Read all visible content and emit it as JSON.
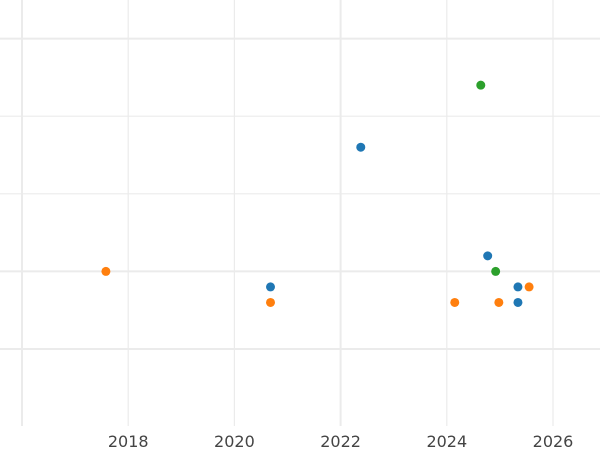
{
  "chart_data": {
    "type": "scatter",
    "title": "",
    "xlabel": "",
    "ylabel": "",
    "xlim": [
      2016,
      2026.9
    ],
    "ylim": [
      -1,
      4.5
    ],
    "x_ticks": [
      2018,
      2020,
      2022,
      2024,
      2026
    ],
    "x_tick_labels": [
      "2018",
      "2020",
      "2022",
      "2024",
      "2026"
    ],
    "x_gridlines": [
      2016,
      2018,
      2020,
      2022,
      2024,
      2026
    ],
    "y_gridlines": [
      0,
      1,
      2,
      3,
      4
    ],
    "y_tick_labels_shown": false,
    "grid": true,
    "colors": {
      "blue": "#1f77b4",
      "orange": "#ff7f0e",
      "green": "#2ca02c",
      "grid": "#ebebeb"
    },
    "series": [
      {
        "color": "#1f77b4",
        "points": [
          [
            2022.38,
            2.6
          ],
          [
            2024.77,
            1.2
          ],
          [
            2020.68,
            0.8
          ],
          [
            2025.34,
            0.8
          ],
          [
            2025.34,
            0.6
          ]
        ]
      },
      {
        "color": "#ff7f0e",
        "points": [
          [
            2017.58,
            1.0
          ],
          [
            2020.68,
            0.6
          ],
          [
            2024.15,
            0.6
          ],
          [
            2024.98,
            0.6
          ],
          [
            2025.55,
            0.8
          ]
        ]
      },
      {
        "color": "#2ca02c",
        "points": [
          [
            2024.64,
            3.4
          ],
          [
            2024.92,
            1.0
          ]
        ]
      }
    ]
  }
}
